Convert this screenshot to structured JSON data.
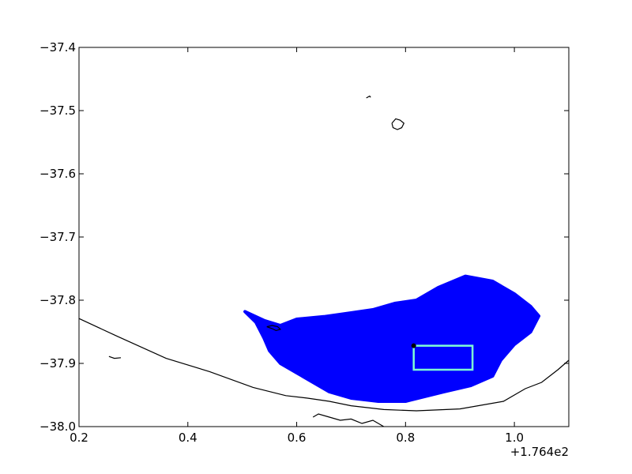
{
  "chart_data": {
    "type": "scatter",
    "title": "",
    "xlabel": "",
    "ylabel": "",
    "xlim": [
      0.2,
      1.1
    ],
    "ylim": [
      -38.0,
      -37.4
    ],
    "x_offset_label": "+1.764e2",
    "xticks": [
      0.2,
      0.4,
      0.6,
      0.8,
      1.0
    ],
    "xtick_labels": [
      "0.2",
      "0.4",
      "0.6",
      "0.8",
      "1.0"
    ],
    "yticks": [
      -37.4,
      -37.5,
      -37.6,
      -37.7,
      -37.8,
      -37.9,
      -38.0
    ],
    "ytick_labels": [
      "−37.4",
      "−37.5",
      "−37.6",
      "−37.7",
      "−37.8",
      "−37.9",
      "−38.0"
    ],
    "grid": false,
    "colors": {
      "scatter_fill": "#0000ff",
      "coastline": "#000000",
      "box": "#7fffd4",
      "marker": "#000000"
    },
    "coastline": [
      [
        [
          0.2,
          -37.829
        ],
        [
          0.27,
          -37.857
        ],
        [
          0.36,
          -37.892
        ],
        [
          0.44,
          -37.913
        ],
        [
          0.52,
          -37.938
        ],
        [
          0.58,
          -37.951
        ],
        [
          0.62,
          -37.955
        ],
        [
          0.66,
          -37.96
        ],
        [
          0.7,
          -37.967
        ],
        [
          0.76,
          -37.973
        ],
        [
          0.82,
          -37.975
        ],
        [
          0.9,
          -37.972
        ],
        [
          0.98,
          -37.96
        ],
        [
          1.02,
          -37.94
        ],
        [
          1.05,
          -37.93
        ],
        [
          1.08,
          -37.91
        ],
        [
          1.1,
          -37.895
        ]
      ],
      [
        [
          0.63,
          -37.985
        ],
        [
          0.64,
          -37.98
        ],
        [
          0.66,
          -37.985
        ],
        [
          0.68,
          -37.99
        ],
        [
          0.7,
          -37.988
        ],
        [
          0.72,
          -37.995
        ],
        [
          0.74,
          -37.99
        ],
        [
          0.76,
          -38.0
        ]
      ],
      [
        [
          0.545,
          -37.842
        ],
        [
          0.555,
          -37.845
        ],
        [
          0.562,
          -37.848
        ],
        [
          0.57,
          -37.846
        ],
        [
          0.565,
          -37.842
        ],
        [
          0.555,
          -37.84
        ],
        [
          0.545,
          -37.842
        ]
      ],
      [
        [
          0.775,
          -37.52
        ],
        [
          0.782,
          -37.513
        ],
        [
          0.79,
          -37.515
        ],
        [
          0.797,
          -37.52
        ],
        [
          0.793,
          -37.527
        ],
        [
          0.785,
          -37.53
        ],
        [
          0.777,
          -37.527
        ],
        [
          0.775,
          -37.52
        ]
      ],
      [
        [
          0.728,
          -37.48
        ],
        [
          0.734,
          -37.477
        ],
        [
          0.736,
          -37.479
        ]
      ],
      [
        [
          0.255,
          -37.889
        ],
        [
          0.265,
          -37.892
        ],
        [
          0.277,
          -37.891
        ]
      ]
    ],
    "point_cloud_outline": [
      [
        0.505,
        -37.818
      ],
      [
        0.54,
        -37.832
      ],
      [
        0.57,
        -37.84
      ],
      [
        0.6,
        -37.83
      ],
      [
        0.65,
        -37.826
      ],
      [
        0.7,
        -37.82
      ],
      [
        0.74,
        -37.815
      ],
      [
        0.78,
        -37.805
      ],
      [
        0.82,
        -37.8
      ],
      [
        0.86,
        -37.78
      ],
      [
        0.91,
        -37.762
      ],
      [
        0.96,
        -37.77
      ],
      [
        1.0,
        -37.79
      ],
      [
        1.03,
        -37.81
      ],
      [
        1.045,
        -37.825
      ],
      [
        1.03,
        -37.85
      ],
      [
        1.0,
        -37.87
      ],
      [
        0.975,
        -37.895
      ],
      [
        0.96,
        -37.92
      ],
      [
        0.92,
        -37.935
      ],
      [
        0.87,
        -37.945
      ],
      [
        0.8,
        -37.96
      ],
      [
        0.75,
        -37.96
      ],
      [
        0.7,
        -37.955
      ],
      [
        0.66,
        -37.945
      ],
      [
        0.62,
        -37.925
      ],
      [
        0.6,
        -37.915
      ],
      [
        0.57,
        -37.9
      ],
      [
        0.55,
        -37.88
      ],
      [
        0.54,
        -37.86
      ],
      [
        0.525,
        -37.835
      ],
      [
        0.505,
        -37.818
      ]
    ],
    "box": [
      [
        0.815,
        -37.872
      ],
      [
        0.923,
        -37.872
      ],
      [
        0.923,
        -37.91
      ],
      [
        0.815,
        -37.91
      ],
      [
        0.815,
        -37.872
      ]
    ],
    "marker_point": [
      0.815,
      -37.872
    ]
  }
}
